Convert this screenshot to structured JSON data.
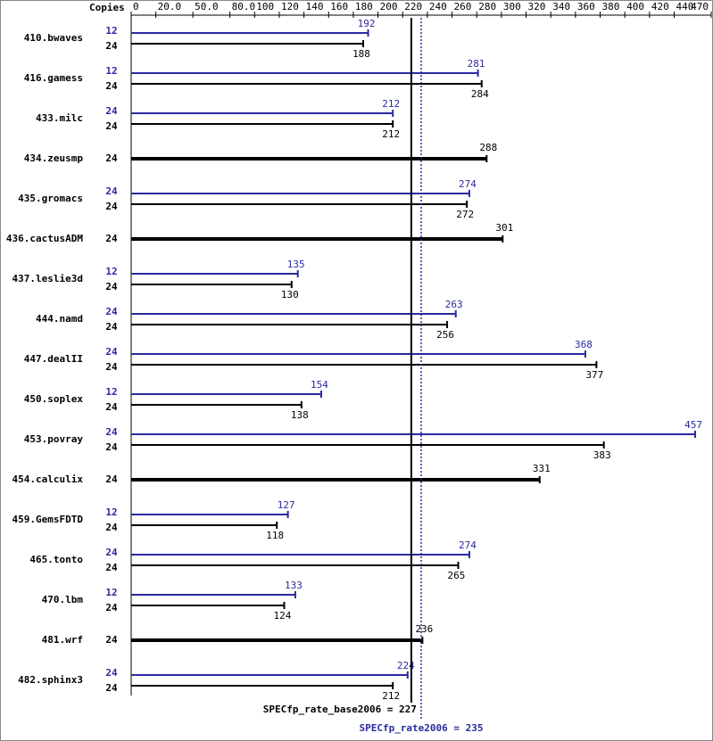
{
  "chart_data": {
    "type": "spec-bar",
    "copies_label": "Copies",
    "peak_color": "#2a2aa0",
    "base_color": "#000000",
    "xlim": [
      0,
      470
    ],
    "xticks": [
      0,
      {
        "value": 20,
        "label": "20.0"
      },
      {
        "value": 50,
        "label": "50.0"
      },
      {
        "value": 80,
        "label": "80.0"
      },
      100,
      120,
      140,
      160,
      180,
      200,
      220,
      240,
      260,
      280,
      300,
      320,
      340,
      360,
      380,
      400,
      420,
      440,
      470
    ],
    "rows": [
      {
        "name": "410.bwaves",
        "peak_copies": 12,
        "peak": 192,
        "base_copies": 24,
        "base": 188
      },
      {
        "name": "416.gamess",
        "peak_copies": 12,
        "peak": 281,
        "base_copies": 24,
        "base": 284
      },
      {
        "name": "433.milc",
        "peak_copies": 24,
        "peak": 212,
        "base_copies": 24,
        "base": 212
      },
      {
        "name": "434.zeusmp",
        "peak_copies": null,
        "peak": null,
        "base_copies": 24,
        "base": 288
      },
      {
        "name": "435.gromacs",
        "peak_copies": 24,
        "peak": 274,
        "base_copies": 24,
        "base": 272
      },
      {
        "name": "436.cactusADM",
        "peak_copies": null,
        "peak": null,
        "base_copies": 24,
        "base": 301
      },
      {
        "name": "437.leslie3d",
        "peak_copies": 12,
        "peak": 135,
        "base_copies": 24,
        "base": 130
      },
      {
        "name": "444.namd",
        "peak_copies": 24,
        "peak": 263,
        "base_copies": 24,
        "base": 256
      },
      {
        "name": "447.dealII",
        "peak_copies": 24,
        "peak": 368,
        "base_copies": 24,
        "base": 377
      },
      {
        "name": "450.soplex",
        "peak_copies": 12,
        "peak": 154,
        "base_copies": 24,
        "base": 138
      },
      {
        "name": "453.povray",
        "peak_copies": 24,
        "peak": 457,
        "base_copies": 24,
        "base": 383
      },
      {
        "name": "454.calculix",
        "peak_copies": null,
        "peak": null,
        "base_copies": 24,
        "base": 331
      },
      {
        "name": "459.GemsFDTD",
        "peak_copies": 12,
        "peak": 127,
        "base_copies": 24,
        "base": 118
      },
      {
        "name": "465.tonto",
        "peak_copies": 24,
        "peak": 274,
        "base_copies": 24,
        "base": 265
      },
      {
        "name": "470.lbm",
        "peak_copies": 12,
        "peak": 133,
        "base_copies": 24,
        "base": 124
      },
      {
        "name": "481.wrf",
        "peak_copies": null,
        "peak": null,
        "base_copies": 24,
        "base": 236
      },
      {
        "name": "482.sphinx3",
        "peak_copies": 24,
        "peak": 224,
        "base_copies": 24,
        "base": 212
      }
    ],
    "reference_lines": [
      {
        "label": "SPECfp_rate_base2006 = 227",
        "value": 227,
        "style": "solid"
      },
      {
        "label": "SPECfp_rate2006 = 235",
        "value": 235,
        "style": "dotted"
      }
    ]
  }
}
